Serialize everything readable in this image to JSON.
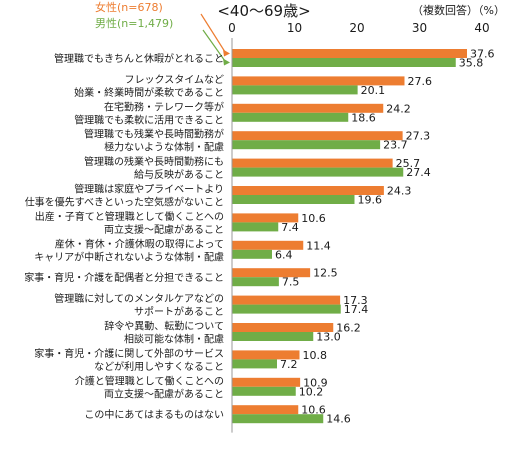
{
  "chart_data": {
    "type": "bar",
    "orientation": "horizontal",
    "title": "<40～69歳>",
    "note": "（複数回答）（%）",
    "xlim": [
      0,
      40
    ],
    "x_ticks": [
      0,
      10,
      20,
      30,
      40
    ],
    "grid": false,
    "legend_position": "top-left",
    "categories": [
      [
        "管理職でもきちんと休暇がとれること"
      ],
      [
        "フレックスタイムなど",
        "始業・終業時間が柔軟であること"
      ],
      [
        "在宅勤務・テレワーク等が",
        "管理職でも柔軟に活用できること"
      ],
      [
        "管理職でも残業や長時間勤務が",
        "極力ないような体制・配慮"
      ],
      [
        "管理職の残業や長時間勤務にも",
        "給与反映があること"
      ],
      [
        "管理職は家庭やプライベートより",
        "仕事を優先すべきといった空気感がないこと"
      ],
      [
        "出産・子育てと管理職として働くことへの",
        "両立支援～配慮があること"
      ],
      [
        "産休・育休・介護休暇の取得によって",
        "キャリアが中断されないような体制・配慮"
      ],
      [
        "家事・育児・介護を配偶者と分担できること"
      ],
      [
        "管理職に対してのメンタルケアなどの",
        "サポートがあること"
      ],
      [
        "辞令や異動、転勤について",
        "相談可能な体制・配慮"
      ],
      [
        "家事・育児・介護に関して外部のサービス",
        "などが利用しやすくなること"
      ],
      [
        "介護と管理職として働くことへの",
        "両立支援～配慮があること"
      ],
      [
        "この中にあてはまるものはない"
      ]
    ],
    "series": [
      {
        "name": "女性(n=678)",
        "color": "#ED7D31",
        "values": [
          37.6,
          27.6,
          24.2,
          27.3,
          25.7,
          24.3,
          10.6,
          11.4,
          12.5,
          17.3,
          16.2,
          10.8,
          10.9,
          10.6
        ]
      },
      {
        "name": "男性(n=1,479)",
        "color": "#70AD47",
        "values": [
          35.8,
          20.1,
          18.6,
          23.7,
          27.4,
          19.6,
          7.4,
          6.4,
          7.5,
          17.4,
          13.0,
          7.2,
          10.2,
          14.6
        ]
      }
    ]
  }
}
